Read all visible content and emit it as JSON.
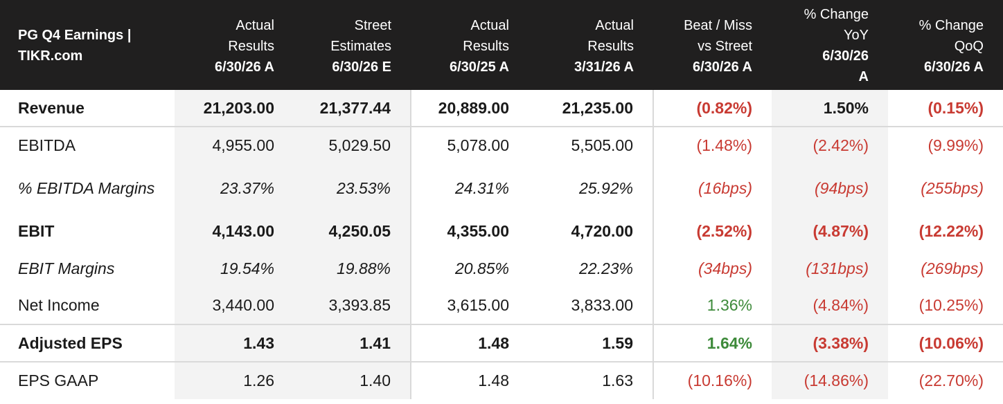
{
  "title_line1": "PG Q4 Earnings |",
  "title_line2": "TIKR.com",
  "columns": [
    {
      "top": "Actual",
      "mid": "Results",
      "sub": "6/30/26 A"
    },
    {
      "top": "Street",
      "mid": "Estimates",
      "sub": "6/30/26 E"
    },
    {
      "top": "Actual",
      "mid": "Results",
      "sub": "6/30/25 A"
    },
    {
      "top": "Actual",
      "mid": "Results",
      "sub": "3/31/26 A"
    },
    {
      "top": "Beat / Miss",
      "mid": "vs Street",
      "sub": "6/30/26 A"
    },
    {
      "top": "% Change",
      "mid": "YoY",
      "sub": "6/30/26",
      "sub2": "A"
    },
    {
      "top": "% Change",
      "mid": "QoQ",
      "sub": "6/30/26 A"
    }
  ],
  "rows": [
    {
      "label": "Revenue",
      "values": [
        "21,203.00",
        "21,377.44",
        "20,889.00",
        "21,235.00",
        "(0.82%)",
        "1.50%",
        "(0.15%)"
      ]
    },
    {
      "label": "EBITDA",
      "values": [
        "4,955.00",
        "5,029.50",
        "5,078.00",
        "5,505.00",
        "(1.48%)",
        "(2.42%)",
        "(9.99%)"
      ]
    },
    {
      "label": "% EBITDA Margins",
      "values": [
        "23.37%",
        "23.53%",
        "24.31%",
        "25.92%",
        "(16bps)",
        "(94bps)",
        "(255bps)"
      ]
    },
    {
      "label": "EBIT",
      "values": [
        "4,143.00",
        "4,250.05",
        "4,355.00",
        "4,720.00",
        "(2.52%)",
        "(4.87%)",
        "(12.22%)"
      ]
    },
    {
      "label": "EBIT Margins",
      "values": [
        "19.54%",
        "19.88%",
        "20.85%",
        "22.23%",
        "(34bps)",
        "(131bps)",
        "(269bps)"
      ]
    },
    {
      "label": "Net Income",
      "values": [
        "3,440.00",
        "3,393.85",
        "3,615.00",
        "3,833.00",
        "1.36%",
        "(4.84%)",
        "(10.25%)"
      ]
    },
    {
      "label": "Adjusted EPS",
      "values": [
        "1.43",
        "1.41",
        "1.48",
        "1.59",
        "1.64%",
        "(3.38%)",
        "(10.06%)"
      ]
    },
    {
      "label": "EPS GAAP",
      "values": [
        "1.26",
        "1.40",
        "1.48",
        "1.63",
        "(10.16%)",
        "(14.86%)",
        "(22.70%)"
      ]
    }
  ],
  "colors": {
    "header_bg": "#201f1f",
    "negative": "#c83a32",
    "positive": "#3d8a3a",
    "shade": "#f3f3f3"
  }
}
